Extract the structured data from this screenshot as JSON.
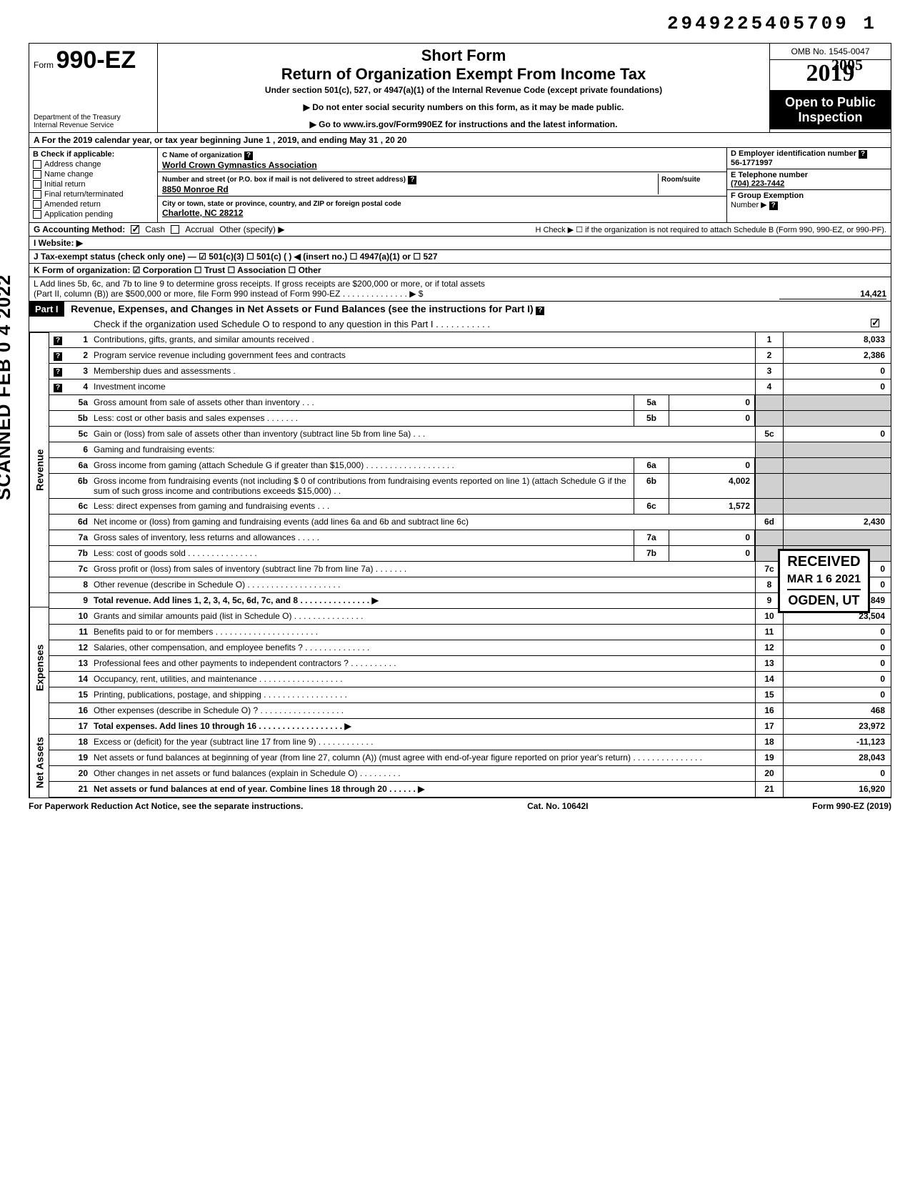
{
  "stamp_id": "2949225405709   1",
  "scan_stamp": "SCANNED FEB 0 4 2022",
  "header": {
    "form_prefix": "Form",
    "form_no": "990-EZ",
    "dept1": "Department of the Treasury",
    "dept2": "Internal Revenue Service",
    "short": "Short Form",
    "title": "Return of Organization Exempt From Income Tax",
    "subtitle": "Under section 501(c), 527, or 4947(a)(1) of the Internal Revenue Code (except private foundations)",
    "instr1": "▶ Do not enter social security numbers on this form, as it may be made public.",
    "instr2": "▶ Go to www.irs.gov/Form990EZ for instructions and the latest information.",
    "omb": "OMB No. 1545-0047",
    "year": "2019",
    "open1": "Open to Public",
    "open2": "Inspection",
    "hand_year": "2005"
  },
  "line_a": "A  For the 2019 calendar year, or tax year beginning           June 1                       , 2019, and ending              May 31             , 20   20",
  "section_b": {
    "label": "B  Check if applicable:",
    "items": [
      "Address change",
      "Name change",
      "Initial return",
      "Final return/terminated",
      "Amended return",
      "Application pending"
    ]
  },
  "section_c": {
    "name_label": "C  Name of organization",
    "name": "World Crown Gymnastics Association",
    "addr_label": "Number and street (or P.O. box if mail is not delivered to street address)",
    "room_label": "Room/suite",
    "addr": "8850 Monroe Rd",
    "city_label": "City or town, state or province, country, and ZIP or foreign postal code",
    "city": "Charlotte, NC 28212"
  },
  "section_d": {
    "label": "D Employer identification number",
    "val": "56-1771997"
  },
  "section_e": {
    "label": "E Telephone number",
    "val": "(704) 223-7442"
  },
  "section_f": {
    "label": "F Group Exemption",
    "label2": "Number ▶"
  },
  "line_g": {
    "label": "G  Accounting Method:",
    "cash": "Cash",
    "accrual": "Accrual",
    "other": "Other (specify) ▶"
  },
  "line_h": "H  Check ▶ ☐ if the organization is not required to attach Schedule B (Form 990, 990-EZ, or 990-PF).",
  "line_i": "I   Website: ▶",
  "line_j": "J  Tax-exempt status (check only one) —  ☑ 501(c)(3)    ☐ 501(c) (        ) ◀ (insert no.)  ☐ 4947(a)(1) or   ☐ 527",
  "line_k": "K  Form of organization:   ☑ Corporation    ☐ Trust    ☐ Association    ☐ Other",
  "line_l": {
    "text1": "L  Add lines 5b, 6c, and 7b to line 9 to determine gross receipts. If gross receipts are $200,000 or more, or if total assets",
    "text2": "(Part II, column (B)) are $500,000 or more, file Form 990 instead of Form 990-EZ .   .   .   .   .   .   .   .   .   .   .   .   .   .   ▶   $",
    "val": "14,421"
  },
  "part1": {
    "label": "Part I",
    "title": "Revenue, Expenses, and Changes in Net Assets or Fund Balances (see the instructions for Part I)",
    "check_line": "Check if the organization used Schedule O to respond to any question in this Part I  .   .   .   .   .   .   .   .   .   .   ."
  },
  "lines": {
    "1": {
      "desc": "Contributions, gifts, grants, and similar amounts received .",
      "box": "1",
      "val": "8,033",
      "help": true
    },
    "2": {
      "desc": "Program service revenue including government fees and contracts",
      "box": "2",
      "val": "2,386",
      "help": true
    },
    "3": {
      "desc": "Membership dues and assessments .",
      "box": "3",
      "val": "0",
      "help": true
    },
    "4": {
      "desc": "Investment income",
      "box": "4",
      "val": "0",
      "help": true
    },
    "5a": {
      "desc": "Gross amount from sale of assets other than inventory   .   .   .",
      "sub": "5a",
      "subval": "0"
    },
    "5b": {
      "desc": "Less: cost or other basis and sales expenses .   .   .   .   .   .   .",
      "sub": "5b",
      "subval": "0"
    },
    "5c": {
      "desc": "Gain or (loss) from sale of assets other than inventory (subtract line 5b from line 5a)   .   .   .",
      "box": "5c",
      "val": "0"
    },
    "6": {
      "desc": "Gaming and fundraising events:"
    },
    "6a": {
      "desc": "Gross income from gaming (attach Schedule G if greater than $15,000) .   .   .   .   .   .   .   .   .   .   .   .   .   .   .   .   .   .   .",
      "sub": "6a",
      "subval": "0"
    },
    "6b": {
      "desc": "Gross income from fundraising events (not including  $                      0 of contributions from fundraising events reported on line 1) (attach Schedule G if the sum of such gross income and contributions exceeds $15,000) .   .",
      "sub": "6b",
      "subval": "4,002"
    },
    "6c": {
      "desc": "Less: direct expenses from gaming and fundraising events    .   .   .",
      "sub": "6c",
      "subval": "1,572"
    },
    "6d": {
      "desc": "Net income or (loss) from gaming and fundraising events (add lines 6a and 6b and subtract line 6c)",
      "box": "6d",
      "val": "2,430"
    },
    "7a": {
      "desc": "Gross sales of inventory, less returns and allowances  .   .   .   .   .",
      "sub": "7a",
      "subval": "0"
    },
    "7b": {
      "desc": "Less: cost of goods sold    .   .   .   .   .   .   .   .   .   .   .   .   .   .   .",
      "sub": "7b",
      "subval": "0"
    },
    "7c": {
      "desc": "Gross profit or (loss) from sales of inventory (subtract line 7b from line 7a)   .   .   .   .   .   .   .",
      "box": "7c",
      "val": "0"
    },
    "8": {
      "desc": "Other revenue (describe in Schedule O) .   .   .   .   .   .   .   .   .   .   .   .   .   .   .   .   .   .   .   .",
      "box": "8",
      "val": "0"
    },
    "9": {
      "desc": "Total revenue. Add lines 1, 2, 3, 4, 5c, 6d, 7c, and 8   .   .   .   .   .   .   .   .   .   .   .   .   .   .   .  ▶",
      "box": "9",
      "val": "12,849",
      "bold": true
    },
    "10": {
      "desc": "Grants and similar amounts paid (list in Schedule O)   .   .   .   .   .   .   .   .   .   .   .   .   .   .   .",
      "box": "10",
      "val": "23,504"
    },
    "11": {
      "desc": "Benefits paid to or for members   .   .   .   .   .   .   .   .   .   .   .   .   .   .   .   .   .   .   .   .   .   .",
      "box": "11",
      "val": "0"
    },
    "12": {
      "desc": "Salaries, other compensation, and employee benefits ? .   .   .   .   .   .   .   .   .   .   .   .   .   .",
      "box": "12",
      "val": "0"
    },
    "13": {
      "desc": "Professional fees and other payments to independent contractors ?   .   .   .   .   .   .   .   .   .   .",
      "box": "13",
      "val": "0"
    },
    "14": {
      "desc": "Occupancy, rent, utilities, and maintenance   .   .   .   .   .   .   .   .   .   .   .   .   .   .   .   .   .   .",
      "box": "14",
      "val": "0"
    },
    "15": {
      "desc": "Printing, publications, postage, and shipping .   .   .   .   .   .   .   .   .   .   .   .   .   .   .   .   .   .",
      "box": "15",
      "val": "0"
    },
    "16": {
      "desc": "Other expenses (describe in Schedule O) ?  .   .   .   .   .   .   .   .   .   .   .   .   .   .   .   .   .   .",
      "box": "16",
      "val": "468"
    },
    "17": {
      "desc": "Total expenses. Add lines 10 through 16   .   .   .   .   .   .   .   .   .   .   .   .   .   .   .   .   .   .   ▶",
      "box": "17",
      "val": "23,972",
      "bold": true
    },
    "18": {
      "desc": "Excess or (deficit) for the year (subtract line 17 from line 9)   .   .   .   .   .   .   .   .   .   .   .   .",
      "box": "18",
      "val": "-11,123"
    },
    "19": {
      "desc": "Net assets or fund balances at beginning of year (from line 27, column (A)) (must agree with end-of-year figure reported on prior year's return)    .   .   .   .   .   .   .   .   .   .   .   .   .   .   .",
      "box": "19",
      "val": "28,043"
    },
    "20": {
      "desc": "Other changes in net assets or fund balances (explain in Schedule O) .   .   .   .   .   .   .   .   .",
      "box": "20",
      "val": "0"
    },
    "21": {
      "desc": "Net assets or fund balances at end of year. Combine lines 18 through 20   .   .   .   .   .   .   ▶",
      "box": "21",
      "val": "16,920",
      "bold": true
    }
  },
  "vert": {
    "revenue": "Revenue",
    "expenses": "Expenses",
    "netassets": "Net Assets"
  },
  "received": {
    "title": "RECEIVED",
    "date": "MAR 1 6 2021",
    "loc": "OGDEN, UT"
  },
  "footer": {
    "left": "For Paperwork Reduction Act Notice, see the separate instructions.",
    "mid": "Cat. No. 10642I",
    "right": "Form 990-EZ (2019)"
  }
}
